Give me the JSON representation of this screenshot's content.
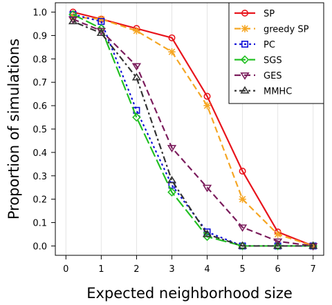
{
  "chart_data": {
    "type": "line",
    "title": "",
    "xlabel": "Expected neighborhood size",
    "ylabel": "Proportion of simulations",
    "xlim": [
      -0.3,
      7.3
    ],
    "ylim": [
      -0.04,
      1.04
    ],
    "xticks": [
      "0",
      "1",
      "2",
      "3",
      "4",
      "5",
      "6",
      "7"
    ],
    "yticks": [
      "0.0",
      "0.1",
      "0.2",
      "0.3",
      "0.4",
      "0.5",
      "0.6",
      "0.7",
      "0.8",
      "0.9",
      "1.0"
    ],
    "grid": "vertical",
    "legend_position": "top-right",
    "x": [
      0.2,
      1,
      2,
      3,
      4,
      5,
      6,
      7
    ],
    "series": [
      {
        "name": "SP",
        "color": "#e8141c",
        "dash": "solid",
        "marker": "circle",
        "values": [
          1.0,
          0.97,
          0.93,
          0.89,
          0.64,
          0.32,
          0.06,
          0.0
        ]
      },
      {
        "name": "greedy SP",
        "color": "#f5a623",
        "dash": "dashed",
        "marker": "asterisk",
        "values": [
          0.98,
          0.97,
          0.92,
          0.83,
          0.6,
          0.2,
          0.05,
          0.0
        ]
      },
      {
        "name": "PC",
        "color": "#1010d8",
        "dash": "dotted",
        "marker": "square",
        "values": [
          0.99,
          0.96,
          0.58,
          0.26,
          0.06,
          0.0,
          0.0,
          0.0
        ]
      },
      {
        "name": "SGS",
        "color": "#22c022",
        "dash": "longdash",
        "marker": "diamond",
        "values": [
          0.99,
          0.93,
          0.55,
          0.23,
          0.04,
          0.0,
          0.0,
          0.0
        ]
      },
      {
        "name": "GES",
        "color": "#7b1c5c",
        "dash": "dashed",
        "marker": "triangle-down",
        "values": [
          0.97,
          0.92,
          0.77,
          0.42,
          0.25,
          0.08,
          0.02,
          0.0
        ]
      },
      {
        "name": "MMHC",
        "color": "#333333",
        "dash": "dotdash",
        "marker": "triangle-up",
        "values": [
          0.96,
          0.91,
          0.72,
          0.28,
          0.05,
          0.0,
          0.0,
          0.0
        ]
      }
    ]
  }
}
